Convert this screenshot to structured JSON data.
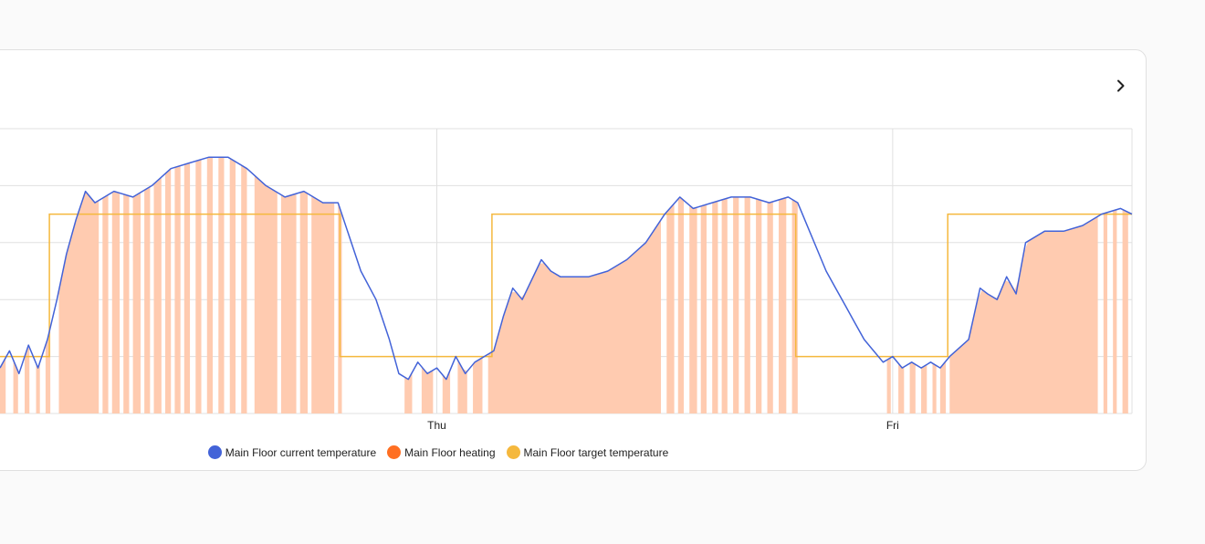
{
  "card": {
    "more_icon": "chevron-right-icon"
  },
  "colors": {
    "current": "#4363d8",
    "heating": "#ff6f22",
    "heating_fill": "#ffcbb0",
    "target": "#f5b83d",
    "grid": "#e0e0e0"
  },
  "legend": {
    "items": [
      {
        "label": "Main Floor current temperature",
        "color": "#4363d8"
      },
      {
        "label": "Main Floor heating",
        "color": "#ff6f22"
      },
      {
        "label": "Main Floor target temperature",
        "color": "#f5b83d"
      }
    ]
  },
  "chart_data": {
    "type": "line",
    "x_ticks": [
      {
        "label": "Thu",
        "value": 24
      },
      {
        "label": "Fri",
        "value": 48
      }
    ],
    "x_range": [
      1.0,
      60.6
    ],
    "y_range": [
      17.0,
      22.0
    ],
    "grid": true,
    "series": [
      {
        "name": "Main Floor current temperature",
        "points": [
          [
            1.0,
            17.8
          ],
          [
            1.5,
            18.1
          ],
          [
            2.0,
            17.7
          ],
          [
            2.5,
            18.2
          ],
          [
            3.0,
            17.8
          ],
          [
            3.5,
            18.3
          ],
          [
            4.0,
            19.0
          ],
          [
            4.5,
            19.8
          ],
          [
            5.0,
            20.4
          ],
          [
            5.5,
            20.9
          ],
          [
            6.0,
            20.7
          ],
          [
            7.0,
            20.9
          ],
          [
            8.0,
            20.8
          ],
          [
            9.0,
            21.0
          ],
          [
            10.0,
            21.3
          ],
          [
            11.0,
            21.4
          ],
          [
            12.0,
            21.5
          ],
          [
            13.0,
            21.5
          ],
          [
            14.0,
            21.3
          ],
          [
            15.0,
            21.0
          ],
          [
            16.0,
            20.8
          ],
          [
            17.0,
            20.9
          ],
          [
            18.0,
            20.7
          ],
          [
            18.8,
            20.7
          ],
          [
            19.3,
            20.2
          ],
          [
            20.0,
            19.5
          ],
          [
            20.8,
            19.0
          ],
          [
            21.5,
            18.3
          ],
          [
            22.0,
            17.7
          ],
          [
            22.5,
            17.6
          ],
          [
            23.0,
            17.9
          ],
          [
            23.5,
            17.7
          ],
          [
            24.0,
            17.8
          ],
          [
            24.5,
            17.6
          ],
          [
            25.0,
            18.0
          ],
          [
            25.5,
            17.7
          ],
          [
            26.0,
            17.9
          ],
          [
            27.0,
            18.1
          ],
          [
            27.5,
            18.7
          ],
          [
            28.0,
            19.2
          ],
          [
            28.5,
            19.0
          ],
          [
            29.5,
            19.7
          ],
          [
            30.0,
            19.5
          ],
          [
            30.5,
            19.4
          ],
          [
            31.0,
            19.4
          ],
          [
            32.0,
            19.4
          ],
          [
            33.0,
            19.5
          ],
          [
            34.0,
            19.7
          ],
          [
            35.0,
            20.0
          ],
          [
            36.0,
            20.5
          ],
          [
            36.8,
            20.8
          ],
          [
            37.5,
            20.6
          ],
          [
            38.5,
            20.7
          ],
          [
            39.5,
            20.8
          ],
          [
            40.5,
            20.8
          ],
          [
            41.5,
            20.7
          ],
          [
            42.5,
            20.8
          ],
          [
            43.0,
            20.7
          ],
          [
            43.5,
            20.3
          ],
          [
            44.0,
            19.9
          ],
          [
            44.5,
            19.5
          ],
          [
            45.0,
            19.2
          ],
          [
            45.5,
            18.9
          ],
          [
            46.0,
            18.6
          ],
          [
            46.5,
            18.3
          ],
          [
            47.0,
            18.1
          ],
          [
            47.5,
            17.9
          ],
          [
            48.0,
            18.0
          ],
          [
            48.5,
            17.8
          ],
          [
            49.0,
            17.9
          ],
          [
            49.5,
            17.8
          ],
          [
            50.0,
            17.9
          ],
          [
            50.5,
            17.8
          ],
          [
            51.0,
            18.0
          ],
          [
            52.0,
            18.3
          ],
          [
            52.6,
            19.2
          ],
          [
            53.0,
            19.1
          ],
          [
            53.5,
            19.0
          ],
          [
            54.0,
            19.4
          ],
          [
            54.5,
            19.1
          ],
          [
            55.0,
            20.0
          ],
          [
            56.0,
            20.2
          ],
          [
            57.0,
            20.2
          ],
          [
            58.0,
            20.3
          ],
          [
            59.0,
            20.5
          ],
          [
            60.0,
            20.6
          ],
          [
            60.6,
            20.5
          ]
        ]
      },
      {
        "name": "Main Floor heating",
        "on_intervals": [
          [
            1.0,
            1.3
          ],
          [
            1.7,
            1.95
          ],
          [
            2.3,
            2.55
          ],
          [
            2.9,
            3.1
          ],
          [
            3.4,
            3.65
          ],
          [
            4.1,
            6.2
          ],
          [
            6.4,
            6.7
          ],
          [
            6.9,
            7.3
          ],
          [
            7.5,
            7.8
          ],
          [
            8.0,
            8.4
          ],
          [
            8.6,
            8.9
          ],
          [
            9.1,
            9.5
          ],
          [
            9.7,
            10.0
          ],
          [
            10.2,
            10.5
          ],
          [
            10.7,
            11.0
          ],
          [
            11.3,
            11.6
          ],
          [
            11.9,
            12.2
          ],
          [
            12.5,
            12.8
          ],
          [
            13.1,
            13.4
          ],
          [
            13.7,
            14.0
          ],
          [
            14.4,
            15.6
          ],
          [
            15.8,
            16.6
          ],
          [
            16.8,
            17.2
          ],
          [
            17.4,
            18.6
          ],
          [
            18.8,
            19.0
          ],
          [
            22.3,
            22.7
          ],
          [
            23.2,
            23.8
          ],
          [
            24.3,
            24.7
          ],
          [
            25.1,
            25.6
          ],
          [
            25.9,
            26.4
          ],
          [
            26.7,
            35.8
          ],
          [
            36.1,
            36.5
          ],
          [
            36.7,
            37.0
          ],
          [
            37.3,
            37.7
          ],
          [
            37.9,
            38.2
          ],
          [
            38.5,
            38.8
          ],
          [
            39.0,
            39.3
          ],
          [
            39.6,
            39.9
          ],
          [
            40.2,
            40.5
          ],
          [
            40.8,
            41.1
          ],
          [
            41.4,
            41.7
          ],
          [
            42.0,
            42.4
          ],
          [
            42.7,
            43.0
          ],
          [
            47.7,
            47.9
          ],
          [
            48.3,
            48.6
          ],
          [
            48.9,
            49.2
          ],
          [
            49.5,
            49.8
          ],
          [
            50.1,
            50.3
          ],
          [
            50.5,
            50.8
          ],
          [
            51.0,
            58.8
          ],
          [
            59.1,
            59.3
          ],
          [
            59.6,
            59.8
          ],
          [
            60.1,
            60.4
          ]
        ]
      },
      {
        "name": "Main Floor target temperature",
        "points": [
          [
            1.0,
            18.0
          ],
          [
            3.6,
            18.0
          ],
          [
            3.6,
            20.5
          ],
          [
            18.9,
            20.5
          ],
          [
            18.9,
            18.0
          ],
          [
            26.9,
            18.0
          ],
          [
            26.9,
            20.5
          ],
          [
            42.9,
            20.5
          ],
          [
            42.9,
            18.0
          ],
          [
            50.9,
            18.0
          ],
          [
            50.9,
            20.5
          ],
          [
            60.6,
            20.5
          ]
        ]
      }
    ]
  }
}
